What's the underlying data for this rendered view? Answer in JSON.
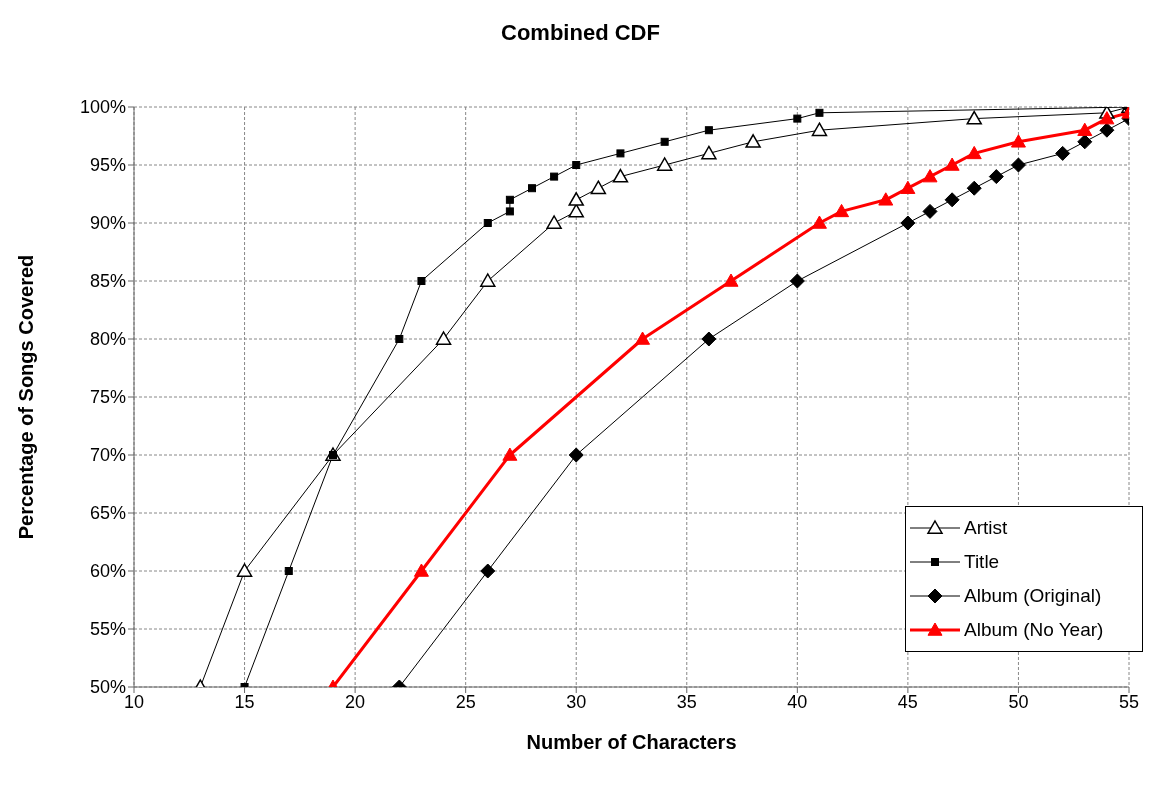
{
  "chart_data": {
    "type": "line",
    "title": "Combined CDF",
    "xlabel": "Number of Characters",
    "ylabel": "Percentage of Songs Covered",
    "xlim": [
      10,
      55
    ],
    "xticks": [
      10,
      15,
      20,
      25,
      30,
      35,
      40,
      45,
      50,
      55
    ],
    "ylim": [
      50,
      100
    ],
    "yticks": [
      {
        "value": 50,
        "label": "50%"
      },
      {
        "value": 55,
        "label": "55%"
      },
      {
        "value": 60,
        "label": "60%"
      },
      {
        "value": 65,
        "label": "65%"
      },
      {
        "value": 70,
        "label": "70%"
      },
      {
        "value": 75,
        "label": "75%"
      },
      {
        "value": 80,
        "label": "80%"
      },
      {
        "value": 85,
        "label": "85%"
      },
      {
        "value": 90,
        "label": "90%"
      },
      {
        "value": 95,
        "label": "95%"
      },
      {
        "value": 100,
        "label": "100%"
      }
    ],
    "grid": true,
    "legend": "bottom right",
    "line_style": "solid",
    "series": [
      {
        "name": "Artist",
        "color": "#000000",
        "marker": "triangle",
        "x": [
          13,
          15,
          19,
          24,
          26,
          29,
          30,
          30,
          31,
          32,
          34,
          36,
          38,
          41,
          48,
          54,
          55
        ],
        "values": [
          50,
          60,
          70,
          80,
          85,
          90,
          91,
          92,
          93,
          94,
          95,
          96,
          97,
          98,
          99,
          99.5,
          100
        ]
      },
      {
        "name": "Title",
        "color": "#000000",
        "marker": "square",
        "x": [
          15,
          17,
          19,
          22,
          23,
          26,
          27,
          27,
          28,
          29,
          30,
          32,
          34,
          36,
          40,
          41,
          55
        ],
        "values": [
          50,
          60,
          70,
          80,
          85,
          90,
          91,
          92,
          93,
          94,
          95,
          96,
          97,
          98,
          99,
          99.5,
          100
        ]
      },
      {
        "name": "Album (Original)",
        "color": "#000000",
        "marker": "diamond",
        "x": [
          22,
          26,
          30,
          36,
          40,
          45,
          46,
          47,
          48,
          49,
          50,
          52,
          53,
          54,
          55,
          55
        ],
        "values": [
          50,
          60,
          70,
          80,
          85,
          90,
          91,
          92,
          93,
          94,
          95,
          96,
          97,
          98,
          99,
          100
        ]
      },
      {
        "name": "Album (No Year)",
        "color": "#ff0000",
        "marker": "triangle",
        "x": [
          19,
          23,
          27,
          33,
          37,
          41,
          42,
          44,
          45,
          46,
          47,
          48,
          50,
          53,
          54,
          55
        ],
        "values": [
          50,
          60,
          70,
          80,
          85,
          90,
          91,
          92,
          93,
          94,
          95,
          96,
          97,
          98,
          99,
          99.5
        ]
      }
    ]
  }
}
